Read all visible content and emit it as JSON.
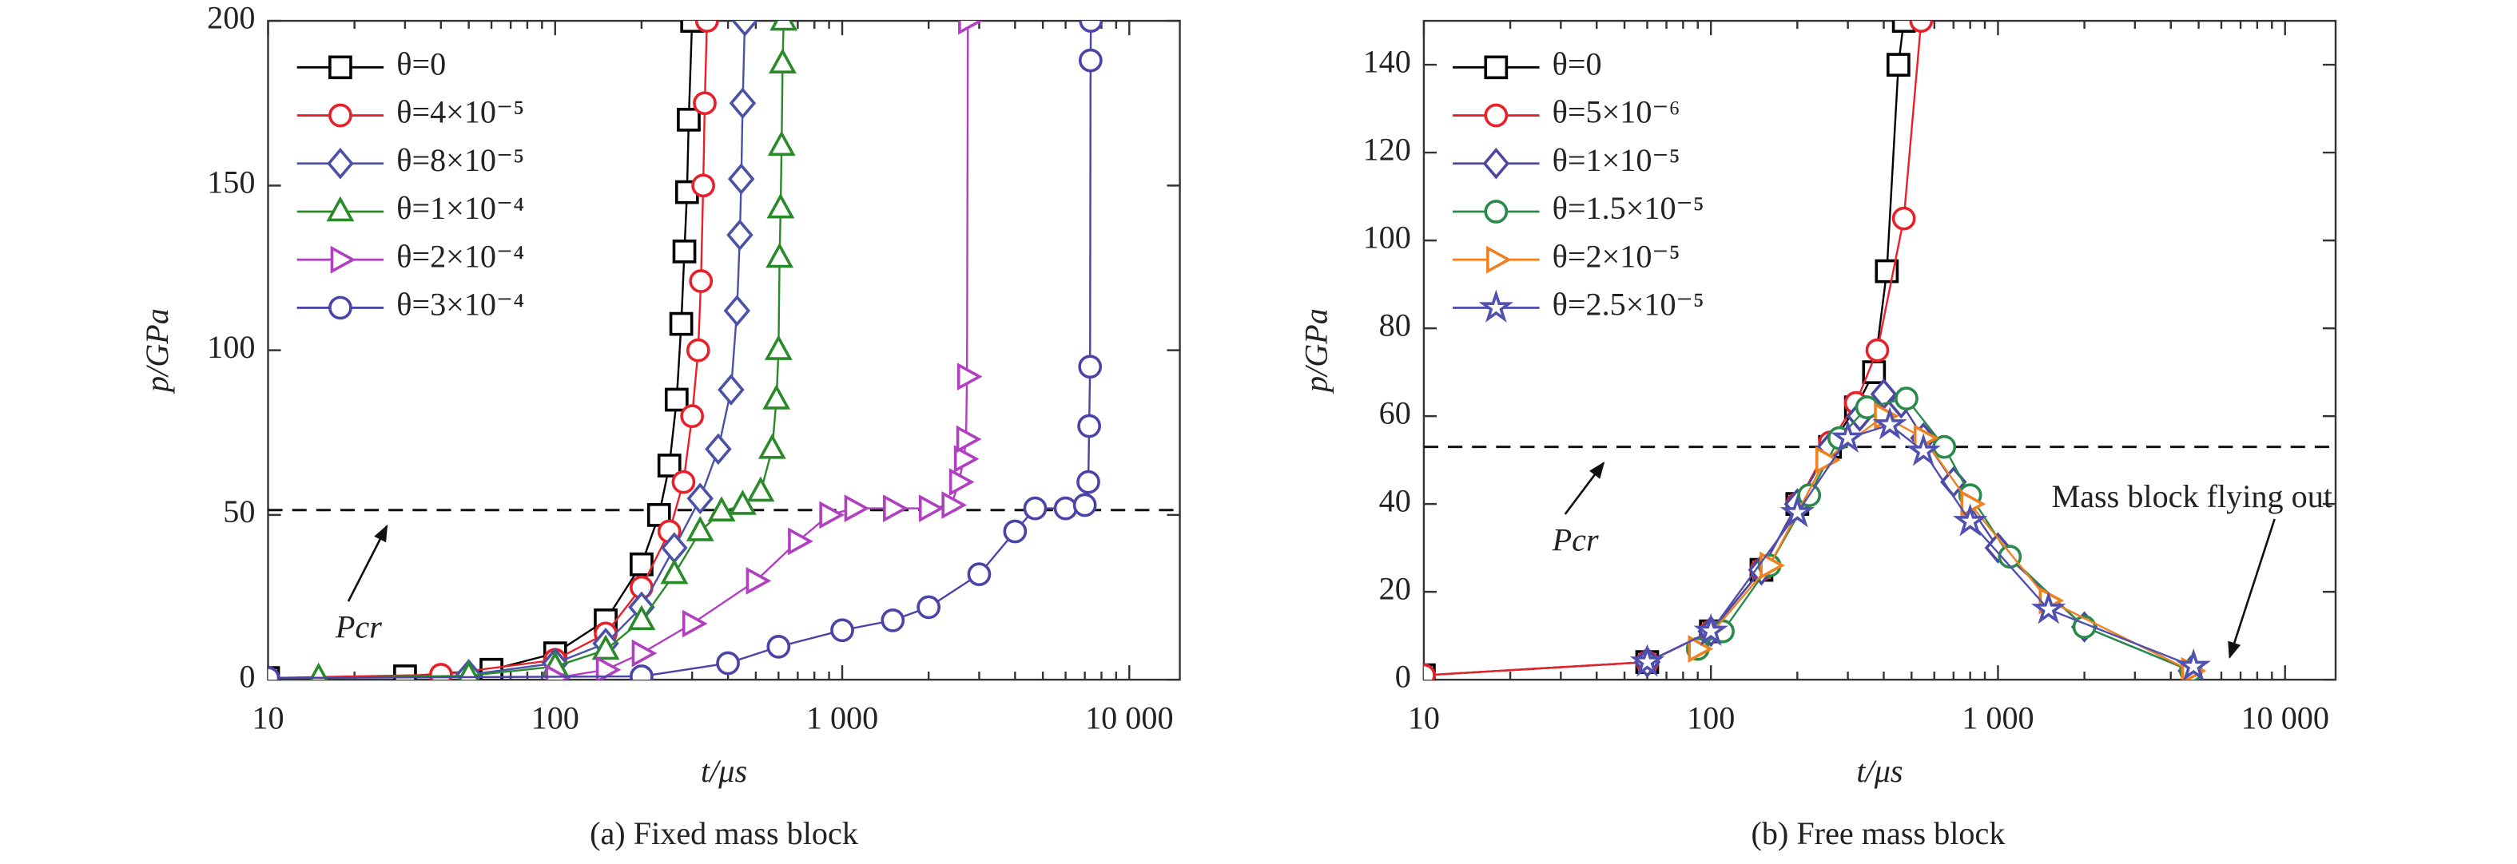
{
  "chart_data": [
    {
      "type": "line",
      "caption": "(a) Fixed mass block",
      "xlabel": "t/μs",
      "ylabel": "p/GPa",
      "xscale": "log",
      "xlim": [
        10,
        15000
      ],
      "xticks": [
        10,
        100,
        {
          "value": 1000,
          "label": "1 000"
        },
        {
          "value": 10000,
          "label": "10 000"
        }
      ],
      "ylim": [
        0,
        200
      ],
      "yticks": [
        0,
        50,
        100,
        150,
        200
      ],
      "legend": "upper left",
      "threshold": 51.5,
      "annotations": [
        "Pcr"
      ],
      "series": [
        {
          "name": "θ=0",
          "color": "#000000",
          "marker": "square",
          "x": [
            10,
            30,
            60,
            100,
            150,
            200,
            230,
            250,
            265,
            275,
            282,
            288,
            292,
            300
          ],
          "values": [
            0.5,
            1,
            3,
            8,
            18,
            35,
            50,
            65,
            85,
            108,
            130,
            148,
            170,
            200
          ]
        },
        {
          "name": "θ=4×10⁻⁵",
          "color": "#e8202a",
          "marker": "circle",
          "x": [
            10,
            40,
            100,
            150,
            200,
            250,
            280,
            300,
            315,
            322,
            328,
            332,
            338
          ],
          "values": [
            0.5,
            1.5,
            6,
            14,
            28,
            45,
            60,
            80,
            100,
            121,
            150,
            175,
            200
          ]
        },
        {
          "name": "θ=8×10⁻⁵",
          "color": "#4a52a8",
          "marker": "diamond",
          "x": [
            50,
            100,
            150,
            200,
            260,
            320,
            370,
            410,
            430,
            440,
            445,
            450,
            458
          ],
          "values": [
            1.5,
            5,
            11,
            22,
            40,
            55,
            70,
            88,
            112,
            135,
            152,
            175,
            200
          ]
        },
        {
          "name": "θ=1×10⁻⁴",
          "color": "#2a8a2a",
          "marker": "triangle-up",
          "x": [
            15,
            50,
            100,
            150,
            200,
            260,
            320,
            380,
            450,
            520,
            570,
            590,
            600,
            605,
            610,
            615,
            620,
            625
          ],
          "values": [
            0.5,
            1.2,
            4,
            9,
            18,
            32,
            45,
            51,
            53,
            57,
            70,
            85,
            100,
            128,
            143,
            162,
            187,
            200
          ]
        },
        {
          "name": "θ=2×10⁻⁴",
          "color": "#b040c0",
          "marker": "triangle-right",
          "x": [
            100,
            150,
            200,
            300,
            500,
            700,
            900,
            1100,
            1500,
            2000,
            2400,
            2550,
            2650,
            2700,
            2720,
            2740
          ],
          "values": [
            0.5,
            3,
            8,
            17,
            30,
            42,
            50,
            52,
            52,
            52,
            53,
            60,
            67,
            73,
            92,
            200
          ]
        },
        {
          "name": "θ=3×10⁻⁴",
          "color": "#4a44a8",
          "marker": "circle",
          "x": [
            10,
            200,
            400,
            600,
            1000,
            1500,
            2000,
            3000,
            4000,
            4700,
            6000,
            7000,
            7200,
            7250,
            7300,
            7330,
            7350
          ],
          "values": [
            0.5,
            1,
            5,
            10,
            15,
            18,
            22,
            32,
            45,
            52,
            52,
            53,
            60,
            77,
            95,
            188,
            200
          ]
        }
      ]
    },
    {
      "type": "line",
      "caption": "(b) Free mass block",
      "xlabel": "t/μs",
      "ylabel": "p/GPa",
      "xscale": "log",
      "xlim": [
        10,
        15000
      ],
      "xticks": [
        10,
        100,
        {
          "value": 1000,
          "label": "1 000"
        },
        {
          "value": 10000,
          "label": "10 000"
        }
      ],
      "ylim": [
        0,
        150
      ],
      "yticks": [
        0,
        20,
        40,
        60,
        80,
        100,
        120,
        140
      ],
      "legend": "upper left",
      "threshold": 53,
      "annotations": [
        "Pcr",
        "Mass block flying out"
      ],
      "series": [
        {
          "name": "θ=0",
          "color": "#000000",
          "marker": "square",
          "x": [
            10,
            60,
            100,
            150,
            200,
            260,
            320,
            370,
            410,
            450,
            470
          ],
          "values": [
            1,
            4,
            11,
            25,
            40,
            53,
            62,
            70,
            93,
            140,
            150
          ]
        },
        {
          "name": "θ=5×10⁻⁶",
          "color": "#e8202a",
          "marker": "circle",
          "x": [
            10,
            60,
            100,
            150,
            200,
            260,
            320,
            380,
            470,
            540
          ],
          "values": [
            1,
            4,
            11,
            25,
            40,
            54,
            63,
            75,
            105,
            150
          ]
        },
        {
          "name": "θ=1×10⁻⁵",
          "color": "#4a48a0",
          "marker": "diamond",
          "x": [
            60,
            100,
            150,
            200,
            260,
            330,
            400,
            460,
            550,
            700,
            1000,
            2000,
            4700
          ],
          "values": [
            4,
            11,
            25,
            40,
            53,
            60,
            65,
            63,
            55,
            45,
            30,
            12,
            2
          ]
        },
        {
          "name": "θ=1.5×10⁻⁵",
          "color": "#2a8a4a",
          "marker": "circle",
          "x": [
            90,
            110,
            160,
            220,
            280,
            350,
            480,
            650,
            800,
            1100,
            2000,
            4700
          ],
          "values": [
            7,
            11,
            26,
            42,
            55,
            62,
            64,
            53,
            42,
            28,
            12,
            2
          ]
        },
        {
          "name": "θ=2×10⁻⁵",
          "color": "#f08020",
          "marker": "triangle-right",
          "x": [
            90,
            160,
            250,
            400,
            550,
            800,
            1500,
            4700
          ],
          "values": [
            7,
            26,
            50,
            60,
            55,
            40,
            18,
            2
          ]
        },
        {
          "name": "θ=2.5×10⁻⁵",
          "color": "#5050b0",
          "marker": "star",
          "x": [
            60,
            100,
            200,
            300,
            420,
            550,
            800,
            1500,
            4800
          ],
          "values": [
            4,
            11,
            38,
            55,
            58,
            52,
            36,
            16,
            3
          ]
        }
      ]
    }
  ]
}
